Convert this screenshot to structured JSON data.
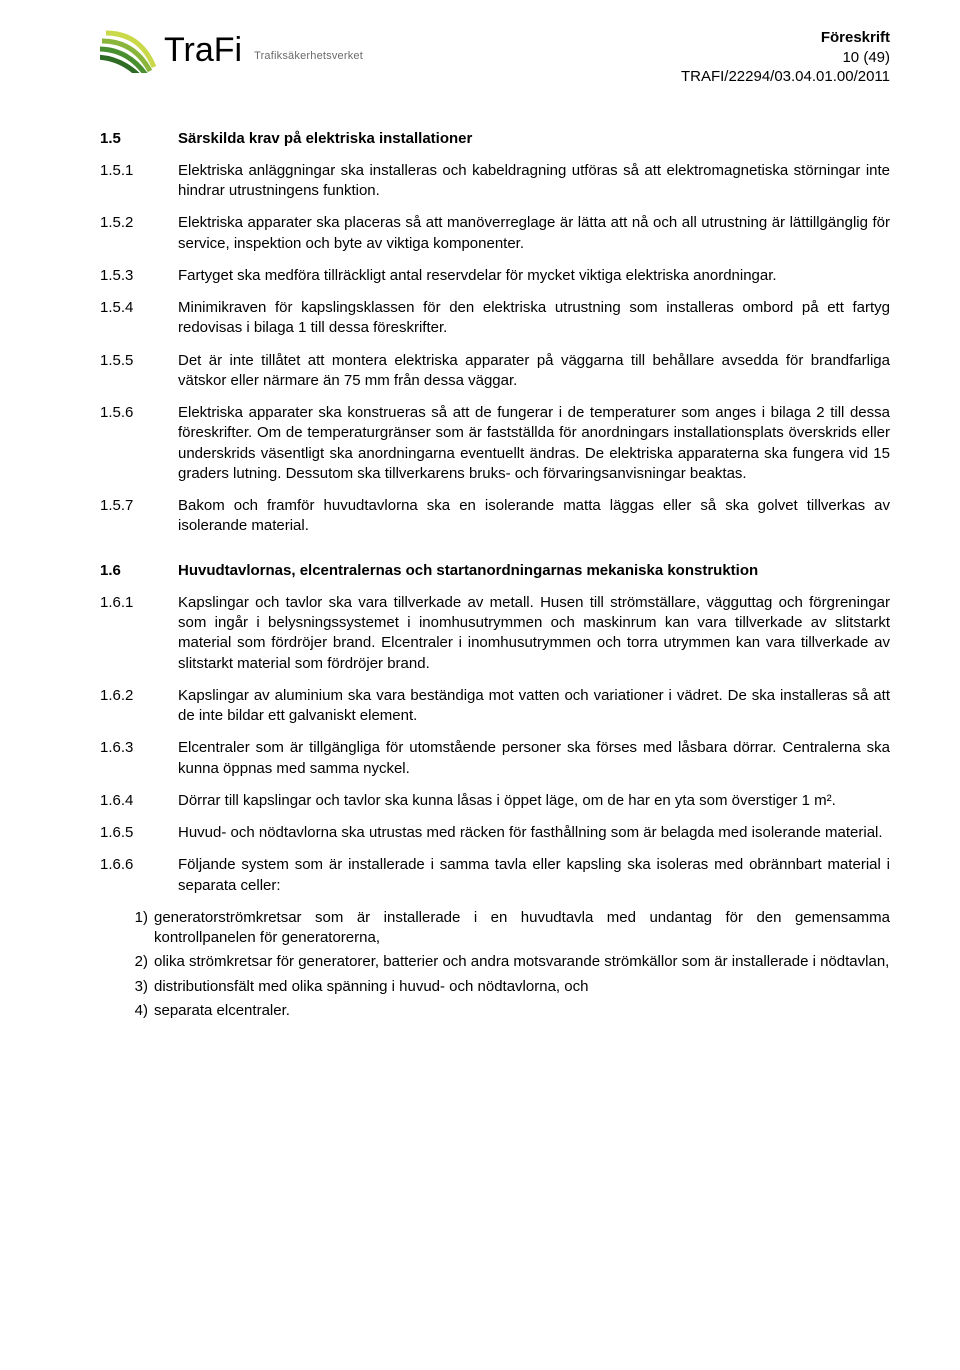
{
  "header": {
    "logo_main": "TraFi",
    "logo_sub": "Trafiksäkerhetsverket",
    "title": "Föreskrift",
    "page_info": "10 (49)",
    "doc_ref": "TRAFI/22294/03.04.01.00/2011"
  },
  "sections": [
    {
      "num": "1.5",
      "bold": true,
      "text": "Särskilda krav på elektriska installationer"
    },
    {
      "num": "1.5.1",
      "bold": false,
      "text": "Elektriska anläggningar ska installeras och kabeldragning utföras så att elektromagnetiska störningar inte hindrar utrustningens funktion."
    },
    {
      "num": "1.5.2",
      "bold": false,
      "text": "Elektriska apparater ska placeras så att manöverreglage är lätta att nå och all utrustning är lättillgänglig för service, inspektion och byte av viktiga komponenter."
    },
    {
      "num": "1.5.3",
      "bold": false,
      "text": "Fartyget ska medföra tillräckligt antal reservdelar för mycket viktiga elektriska anordningar."
    },
    {
      "num": "1.5.4",
      "bold": false,
      "text": "Minimikraven för kapslingsklassen för den elektriska utrustning som installeras ombord på ett fartyg redovisas i bilaga 1 till dessa föreskrifter."
    },
    {
      "num": "1.5.5",
      "bold": false,
      "text": "Det är inte tillåtet att montera elektriska apparater på väggarna till behållare avsedda för brandfarliga vätskor eller närmare än 75 mm från dessa väggar."
    },
    {
      "num": "1.5.6",
      "bold": false,
      "text": "Elektriska apparater ska konstrueras så att de fungerar i de temperaturer som anges i bilaga 2 till dessa föreskrifter. Om de temperaturgränser som är fastställda för anordningars installationsplats överskrids eller underskrids väsentligt ska anordningarna eventuellt ändras. De elektriska apparaterna ska fungera vid 15 graders lutning. Dessutom ska tillverkarens bruks- och förvaringsanvisningar beaktas."
    },
    {
      "num": "1.5.7",
      "bold": false,
      "text": "Bakom och framför huvudtavlorna ska en isolerande matta läggas eller så ska golvet tillverkas av isolerande material."
    },
    {
      "num": "1.6",
      "bold": true,
      "text": "Huvudtavlornas, elcentralernas och startanordningarnas mekaniska konstruktion"
    },
    {
      "num": "1.6.1",
      "bold": false,
      "text": "Kapslingar och tavlor ska vara tillverkade av metall. Husen till strömställare, vägguttag och förgreningar som ingår i belysningssystemet i inomhusutrymmen och maskinrum kan vara tillverkade av slitstarkt material som fördröjer brand. Elcentraler i inomhusutrymmen och torra utrymmen kan vara tillverkade av slitstarkt material som fördröjer brand."
    },
    {
      "num": "1.6.2",
      "bold": false,
      "text": "Kapslingar av aluminium ska vara beständiga mot vatten och variationer i vädret. De ska installeras så att de inte bildar ett galvaniskt element."
    },
    {
      "num": "1.6.3",
      "bold": false,
      "text": "Elcentraler som är tillgängliga för utomstående personer ska förses med låsbara dörrar. Centralerna ska kunna öppnas med samma nyckel."
    },
    {
      "num": "1.6.4",
      "bold": false,
      "text": "Dörrar till kapslingar och tavlor ska kunna låsas i öppet läge, om de har en yta som överstiger 1 m²."
    },
    {
      "num": "1.6.5",
      "bold": false,
      "text": "Huvud- och nödtavlorna ska utrustas med räcken för fasthållning som är belagda med isolerande material."
    },
    {
      "num": "1.6.6",
      "bold": false,
      "text": "Följande system som är installerade i samma tavla eller kapsling ska isoleras med obrännbart material i separata celler:"
    }
  ],
  "list": [
    {
      "marker": "1)",
      "text": "generatorströmkretsar som är installerade i en huvudtavla med undantag för den gemensamma kontrollpanelen för generatorerna,"
    },
    {
      "marker": "2)",
      "text": "olika strömkretsar för generatorer, batterier och andra motsvarande strömkällor som är installerade i nödtavlan,"
    },
    {
      "marker": "3)",
      "text": "distributionsfält med olika spänning i huvud- och nödtavlorna, och"
    },
    {
      "marker": "4)",
      "text": "separata elcentraler."
    }
  ]
}
